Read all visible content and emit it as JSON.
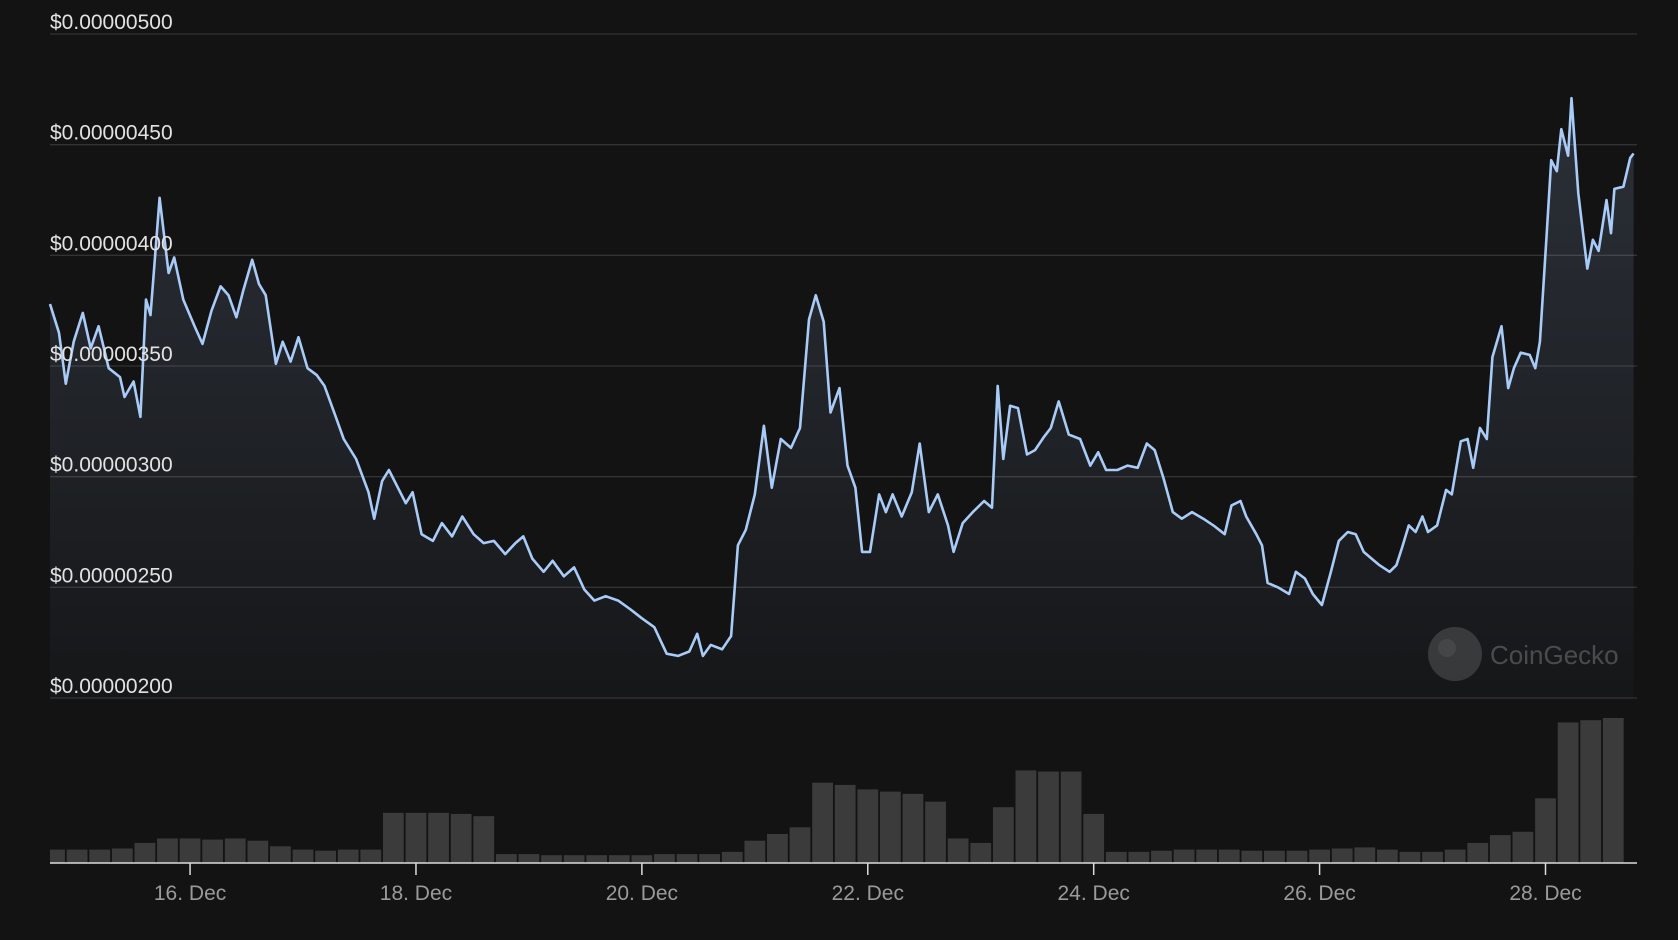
{
  "chart_data": {
    "type": "line",
    "color": "#a9cbf7",
    "grid": true,
    "watermark": "CoinGecko",
    "xlim": [
      14.76,
      28.81
    ],
    "ylim": [
      2e-06,
      5e-06
    ],
    "xticks": [
      {
        "value": 16,
        "label": "16. Dec"
      },
      {
        "value": 18,
        "label": "18. Dec"
      },
      {
        "value": 20,
        "label": "20. Dec"
      },
      {
        "value": 22,
        "label": "22. Dec"
      },
      {
        "value": 24,
        "label": "24. Dec"
      },
      {
        "value": 26,
        "label": "26. Dec"
      },
      {
        "value": 28,
        "label": "28. Dec"
      }
    ],
    "yticks": [
      {
        "value": 2e-06,
        "label": "$0.00000200"
      },
      {
        "value": 2.5e-06,
        "label": "$0.00000250"
      },
      {
        "value": 3e-06,
        "label": "$0.00000300"
      },
      {
        "value": 3.5e-06,
        "label": "$0.00000350"
      },
      {
        "value": 4e-06,
        "label": "$0.00000400"
      },
      {
        "value": 4.5e-06,
        "label": "$0.00000450"
      },
      {
        "value": 5e-06,
        "label": "$0.00000500"
      }
    ],
    "x": [
      14.76,
      14.84,
      14.9,
      14.97,
      15.05,
      15.12,
      15.19,
      15.28,
      15.38,
      15.42,
      15.5,
      15.56,
      15.61,
      15.65,
      15.73,
      15.81,
      15.86,
      15.94,
      16.04,
      16.11,
      16.19,
      16.27,
      16.34,
      16.41,
      16.47,
      16.55,
      16.61,
      16.67,
      16.76,
      16.82,
      16.89,
      16.96,
      17.04,
      17.12,
      17.19,
      17.29,
      17.36,
      17.47,
      17.58,
      17.63,
      17.7,
      17.76,
      17.84,
      17.91,
      17.97,
      18.05,
      18.15,
      18.23,
      18.32,
      18.41,
      18.51,
      18.6,
      18.69,
      18.79,
      18.88,
      18.95,
      19.03,
      19.13,
      19.21,
      19.31,
      19.4,
      19.49,
      19.58,
      19.68,
      19.79,
      19.9,
      20.0,
      20.11,
      20.22,
      20.32,
      20.42,
      20.49,
      20.54,
      20.61,
      20.71,
      20.79,
      20.85,
      20.92,
      21.0,
      21.08,
      21.15,
      21.23,
      21.32,
      21.4,
      21.48,
      21.54,
      21.61,
      21.67,
      21.75,
      21.82,
      21.89,
      21.95,
      22.02,
      22.1,
      22.16,
      22.22,
      22.3,
      22.39,
      22.46,
      22.54,
      22.62,
      22.71,
      22.76,
      22.84,
      22.93,
      23.03,
      23.1,
      23.15,
      23.2,
      23.26,
      23.33,
      23.41,
      23.48,
      23.56,
      23.62,
      23.69,
      23.78,
      23.88,
      23.97,
      24.04,
      24.11,
      24.21,
      24.3,
      24.39,
      24.47,
      24.54,
      24.62,
      24.7,
      24.78,
      24.87,
      24.97,
      25.06,
      25.16,
      25.22,
      25.3,
      25.35,
      25.44,
      25.49,
      25.54,
      25.63,
      25.73,
      25.79,
      25.87,
      25.94,
      26.02,
      26.1,
      26.17,
      26.25,
      26.32,
      26.39,
      26.46,
      26.53,
      26.62,
      26.68,
      26.73,
      26.79,
      26.85,
      26.91,
      26.96,
      27.04,
      27.12,
      27.17,
      27.25,
      27.31,
      27.36,
      27.42,
      27.48,
      27.53,
      27.61,
      27.67,
      27.72,
      27.78,
      27.86,
      27.91,
      27.95,
      28.01,
      28.05,
      28.1,
      28.14,
      28.2,
      28.23,
      28.29,
      28.37,
      28.42,
      28.47,
      28.54,
      28.58,
      28.61,
      28.69,
      28.75,
      28.78
    ],
    "values": [
      3.78e-06,
      3.65e-06,
      3.42e-06,
      3.61e-06,
      3.74e-06,
      3.58e-06,
      3.68e-06,
      3.49e-06,
      3.45e-06,
      3.36e-06,
      3.43e-06,
      3.27e-06,
      3.8e-06,
      3.73e-06,
      4.26e-06,
      3.92e-06,
      3.99e-06,
      3.8e-06,
      3.68e-06,
      3.6e-06,
      3.75e-06,
      3.86e-06,
      3.82e-06,
      3.72e-06,
      3.84e-06,
      3.98e-06,
      3.87e-06,
      3.82e-06,
      3.51e-06,
      3.61e-06,
      3.52e-06,
      3.63e-06,
      3.49e-06,
      3.46e-06,
      3.41e-06,
      3.27e-06,
      3.17e-06,
      3.08e-06,
      2.93e-06,
      2.81e-06,
      2.98e-06,
      3.03e-06,
      2.95e-06,
      2.88e-06,
      2.93e-06,
      2.74e-06,
      2.71e-06,
      2.79e-06,
      2.73e-06,
      2.82e-06,
      2.74e-06,
      2.7e-06,
      2.71e-06,
      2.65e-06,
      2.7e-06,
      2.73e-06,
      2.63e-06,
      2.57e-06,
      2.62e-06,
      2.55e-06,
      2.59e-06,
      2.49e-06,
      2.44e-06,
      2.46e-06,
      2.44e-06,
      2.4e-06,
      2.36e-06,
      2.32e-06,
      2.2e-06,
      2.19e-06,
      2.21e-06,
      2.29e-06,
      2.19e-06,
      2.24e-06,
      2.22e-06,
      2.28e-06,
      2.69e-06,
      2.76e-06,
      2.92e-06,
      3.23e-06,
      2.95e-06,
      3.17e-06,
      3.13e-06,
      3.22e-06,
      3.71e-06,
      3.82e-06,
      3.7e-06,
      3.29e-06,
      3.4e-06,
      3.05e-06,
      2.95e-06,
      2.66e-06,
      2.66e-06,
      2.92e-06,
      2.84e-06,
      2.92e-06,
      2.82e-06,
      2.93e-06,
      3.15e-06,
      2.84e-06,
      2.92e-06,
      2.78e-06,
      2.66e-06,
      2.79e-06,
      2.84e-06,
      2.89e-06,
      2.86e-06,
      3.41e-06,
      3.08e-06,
      3.32e-06,
      3.31e-06,
      3.1e-06,
      3.12e-06,
      3.18e-06,
      3.22e-06,
      3.34e-06,
      3.19e-06,
      3.17e-06,
      3.05e-06,
      3.11e-06,
      3.03e-06,
      3.03e-06,
      3.05e-06,
      3.04e-06,
      3.15e-06,
      3.12e-06,
      2.99e-06,
      2.84e-06,
      2.81e-06,
      2.84e-06,
      2.81e-06,
      2.78e-06,
      2.74e-06,
      2.87e-06,
      2.89e-06,
      2.82e-06,
      2.74e-06,
      2.69e-06,
      2.52e-06,
      2.5e-06,
      2.47e-06,
      2.57e-06,
      2.54e-06,
      2.47e-06,
      2.42e-06,
      2.57e-06,
      2.71e-06,
      2.75e-06,
      2.74e-06,
      2.66e-06,
      2.63e-06,
      2.6e-06,
      2.57e-06,
      2.6e-06,
      2.68e-06,
      2.78e-06,
      2.75e-06,
      2.82e-06,
      2.75e-06,
      2.78e-06,
      2.94e-06,
      2.92e-06,
      3.16e-06,
      3.17e-06,
      3.04e-06,
      3.22e-06,
      3.17e-06,
      3.54e-06,
      3.68e-06,
      3.4e-06,
      3.49e-06,
      3.56e-06,
      3.55e-06,
      3.49e-06,
      3.61e-06,
      4.09e-06,
      4.43e-06,
      4.38e-06,
      4.57e-06,
      4.45e-06,
      4.71e-06,
      4.28e-06,
      3.94e-06,
      4.07e-06,
      4.02e-06,
      4.25e-06,
      4.1e-06,
      4.3e-06,
      4.31e-06,
      4.44e-06,
      4.46e-06
    ],
    "volume": {
      "color": "#3b3b3b",
      "x": [
        14.8,
        15.0,
        15.2,
        15.4,
        15.6,
        15.8,
        16.0,
        16.2,
        16.4,
        16.6,
        16.8,
        17.0,
        17.2,
        17.4,
        17.6,
        17.8,
        18.0,
        18.2,
        18.4,
        18.6,
        18.8,
        19.0,
        19.2,
        19.4,
        19.6,
        19.8,
        20.0,
        20.2,
        20.4,
        20.6,
        20.8,
        21.0,
        21.2,
        21.4,
        21.6,
        21.8,
        22.0,
        22.2,
        22.4,
        22.6,
        22.8,
        23.0,
        23.2,
        23.4,
        23.6,
        23.8,
        24.0,
        24.2,
        24.4,
        24.6,
        24.8,
        25.0,
        25.2,
        25.4,
        25.6,
        25.8,
        26.0,
        26.2,
        26.4,
        26.6,
        26.8,
        27.0,
        27.2,
        27.4,
        27.6,
        27.8,
        28.0,
        28.2,
        28.4,
        28.6
      ],
      "values": [
        12,
        12,
        12,
        13,
        18,
        22,
        22,
        21,
        22,
        20,
        15,
        12,
        11,
        12,
        12,
        45,
        45,
        45,
        44,
        42,
        8,
        8,
        7,
        7,
        7,
        7,
        7,
        8,
        8,
        8,
        10,
        20,
        26,
        32,
        72,
        70,
        66,
        64,
        62,
        55,
        22,
        18,
        50,
        83,
        82,
        82,
        44,
        10,
        10,
        11,
        12,
        12,
        12,
        11,
        11,
        11,
        12,
        13,
        14,
        12,
        10,
        10,
        12,
        18,
        25,
        28,
        58,
        126,
        128,
        130
      ]
    }
  }
}
